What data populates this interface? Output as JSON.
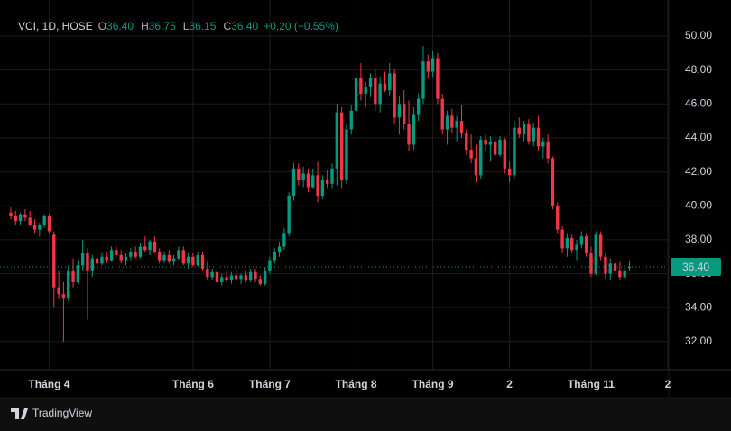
{
  "chart_data": {
    "type": "candlestick",
    "title": "VCI, 1D, HOSE",
    "legend_values": [
      {
        "label": "O",
        "value": "36.40"
      },
      {
        "label": "H",
        "value": "36.75"
      },
      {
        "label": "L",
        "value": "36.15"
      },
      {
        "label": "C",
        "value": "36.40"
      }
    ],
    "change": "+0.20 (+0.55%)",
    "up_color": "#089981",
    "down_color": "#f23645",
    "grid": true,
    "last_price": {
      "value": 36.4,
      "label": "36.40"
    },
    "ylim": [
      30.35,
      52.12
    ],
    "yticks": [
      {
        "value": 32,
        "label": "32.00"
      },
      {
        "value": 34,
        "label": "34.00"
      },
      {
        "value": 36,
        "label": "36.00"
      },
      {
        "value": 38,
        "label": "38.00"
      },
      {
        "value": 40,
        "label": "40.00"
      },
      {
        "value": 42,
        "label": "42.00"
      },
      {
        "value": 44,
        "label": "44.00"
      },
      {
        "value": 46,
        "label": "46.00"
      },
      {
        "value": 48,
        "label": "48.00"
      },
      {
        "value": 50,
        "label": "50.00"
      }
    ],
    "xlim": [
      -2.25,
      137
    ],
    "xticks": [
      {
        "value": 8,
        "label": "Tháng 4"
      },
      {
        "value": 38,
        "label": "Tháng 6"
      },
      {
        "value": 54,
        "label": "Tháng 7"
      },
      {
        "value": 72,
        "label": "Tháng 8"
      },
      {
        "value": 88,
        "label": "Tháng 9"
      },
      {
        "value": 104,
        "label": "2"
      },
      {
        "value": 121,
        "label": "Tháng 11"
      },
      {
        "value": 137,
        "label": "2"
      }
    ],
    "ohlc": [
      [
        39.6,
        39.9,
        39.2,
        39.4
      ],
      [
        39.4,
        39.7,
        38.9,
        39.1
      ],
      [
        39.1,
        39.6,
        38.9,
        39.5
      ],
      [
        39.5,
        39.8,
        39.1,
        39.3
      ],
      [
        39.3,
        39.7,
        38.8,
        38.9
      ],
      [
        38.9,
        39.2,
        38.4,
        38.6
      ],
      [
        38.6,
        39.0,
        38.2,
        38.9
      ],
      [
        38.9,
        39.5,
        38.7,
        39.4
      ],
      [
        39.4,
        39.5,
        38.4,
        38.5
      ],
      [
        38.3,
        38.5,
        34.0,
        35.2
      ],
      [
        35.2,
        36.2,
        34.5,
        34.8
      ],
      [
        34.8,
        35.5,
        32.0,
        34.6
      ],
      [
        34.6,
        36.5,
        34.4,
        36.2
      ],
      [
        36.2,
        36.9,
        35.2,
        35.5
      ],
      [
        35.5,
        36.8,
        35.4,
        36.5
      ],
      [
        36.5,
        38.0,
        36.2,
        37.2
      ],
      [
        37.2,
        37.5,
        33.3,
        36.2
      ],
      [
        36.2,
        37.1,
        35.8,
        36.9
      ],
      [
        36.9,
        37.3,
        36.4,
        36.6
      ],
      [
        36.6,
        37.2,
        36.5,
        37.0
      ],
      [
        37.0,
        37.3,
        36.6,
        36.8
      ],
      [
        36.8,
        37.6,
        36.7,
        37.4
      ],
      [
        37.4,
        37.6,
        36.9,
        37.1
      ],
      [
        37.1,
        37.4,
        36.6,
        36.8
      ],
      [
        36.8,
        37.2,
        36.5,
        37.0
      ],
      [
        37.0,
        37.5,
        36.8,
        37.3
      ],
      [
        37.3,
        37.6,
        36.9,
        37.0
      ],
      [
        37.0,
        37.8,
        36.9,
        37.6
      ],
      [
        37.6,
        38.2,
        37.3,
        37.4
      ],
      [
        37.4,
        38.0,
        37.1,
        37.9
      ],
      [
        37.9,
        38.2,
        37.2,
        37.3
      ],
      [
        37.3,
        37.5,
        36.6,
        36.8
      ],
      [
        36.8,
        37.3,
        36.6,
        37.1
      ],
      [
        37.1,
        37.4,
        36.6,
        36.7
      ],
      [
        36.7,
        37.1,
        36.5,
        36.9
      ],
      [
        36.9,
        37.6,
        36.8,
        37.4
      ],
      [
        37.4,
        37.6,
        36.5,
        36.6
      ],
      [
        36.6,
        37.2,
        36.3,
        37.0
      ],
      [
        37.0,
        37.2,
        36.4,
        36.5
      ],
      [
        36.5,
        37.3,
        36.4,
        37.1
      ],
      [
        37.1,
        37.3,
        36.2,
        36.3
      ],
      [
        36.3,
        36.7,
        35.6,
        35.8
      ],
      [
        35.8,
        36.3,
        35.6,
        36.1
      ],
      [
        36.1,
        36.4,
        35.4,
        35.5
      ],
      [
        35.5,
        36.0,
        35.3,
        35.8
      ],
      [
        35.8,
        36.2,
        35.5,
        35.6
      ],
      [
        35.6,
        36.1,
        35.4,
        35.9
      ],
      [
        35.9,
        36.3,
        35.6,
        35.7
      ],
      [
        35.7,
        36.0,
        35.4,
        35.9
      ],
      [
        35.9,
        36.2,
        35.5,
        35.6
      ],
      [
        35.6,
        36.3,
        35.5,
        36.1
      ],
      [
        36.1,
        36.3,
        35.5,
        35.7
      ],
      [
        35.7,
        35.9,
        35.3,
        35.4
      ],
      [
        35.4,
        36.4,
        35.3,
        36.2
      ],
      [
        36.2,
        37.0,
        36.0,
        36.8
      ],
      [
        36.8,
        37.5,
        36.6,
        37.3
      ],
      [
        37.3,
        37.9,
        37.0,
        37.6
      ],
      [
        37.6,
        38.7,
        37.4,
        38.4
      ],
      [
        38.4,
        40.8,
        38.2,
        40.6
      ],
      [
        40.6,
        42.5,
        40.3,
        42.2
      ],
      [
        42.2,
        42.5,
        41.2,
        41.5
      ],
      [
        41.5,
        42.3,
        41.1,
        41.9
      ],
      [
        41.9,
        42.2,
        40.8,
        41.1
      ],
      [
        41.1,
        42.2,
        41.0,
        41.8
      ],
      [
        41.8,
        42.6,
        40.2,
        40.6
      ],
      [
        40.6,
        41.8,
        40.4,
        41.5
      ],
      [
        41.5,
        42.1,
        41.0,
        41.3
      ],
      [
        41.3,
        42.5,
        41.0,
        42.2
      ],
      [
        42.2,
        46.0,
        41.2,
        45.5
      ],
      [
        45.5,
        45.8,
        41.0,
        41.5
      ],
      [
        41.5,
        44.8,
        41.3,
        44.5
      ],
      [
        44.5,
        45.9,
        44.2,
        45.6
      ],
      [
        45.6,
        48.0,
        45.2,
        47.5
      ],
      [
        47.5,
        48.4,
        46.2,
        46.6
      ],
      [
        46.6,
        47.3,
        45.8,
        47.0
      ],
      [
        47.0,
        47.8,
        46.4,
        47.5
      ],
      [
        47.5,
        48.0,
        45.6,
        46.0
      ],
      [
        46.0,
        47.6,
        45.5,
        47.2
      ],
      [
        47.2,
        47.9,
        46.7,
        46.8
      ],
      [
        46.8,
        48.4,
        46.5,
        47.8
      ],
      [
        47.8,
        48.1,
        44.8,
        45.2
      ],
      [
        45.2,
        46.5,
        44.2,
        46.0
      ],
      [
        46.0,
        46.8,
        44.5,
        44.8
      ],
      [
        44.8,
        46.2,
        43.2,
        43.6
      ],
      [
        43.6,
        45.8,
        43.3,
        45.4
      ],
      [
        45.4,
        46.6,
        45.0,
        46.3
      ],
      [
        46.3,
        49.4,
        46.0,
        48.5
      ],
      [
        48.5,
        48.9,
        47.5,
        47.9
      ],
      [
        47.9,
        49.1,
        47.6,
        48.7
      ],
      [
        48.7,
        49.0,
        46.0,
        46.3
      ],
      [
        46.3,
        46.6,
        44.2,
        44.5
      ],
      [
        44.5,
        45.6,
        43.6,
        45.3
      ],
      [
        45.3,
        45.7,
        44.3,
        44.6
      ],
      [
        44.6,
        45.3,
        43.8,
        45.0
      ],
      [
        45.0,
        45.9,
        44.0,
        44.3
      ],
      [
        44.3,
        44.5,
        43.0,
        43.3
      ],
      [
        43.3,
        44.2,
        42.5,
        42.8
      ],
      [
        42.8,
        43.6,
        41.4,
        41.8
      ],
      [
        41.8,
        44.1,
        41.6,
        43.9
      ],
      [
        43.9,
        44.2,
        43.2,
        43.6
      ],
      [
        43.6,
        44.1,
        42.6,
        43.8
      ],
      [
        43.8,
        44.0,
        42.8,
        43.0
      ],
      [
        43.0,
        44.1,
        42.9,
        43.9
      ],
      [
        43.9,
        44.0,
        41.9,
        42.2
      ],
      [
        42.2,
        42.6,
        41.4,
        41.8
      ],
      [
        41.8,
        45.0,
        41.6,
        44.6
      ],
      [
        44.6,
        45.2,
        44.0,
        44.2
      ],
      [
        44.2,
        45.0,
        43.8,
        44.8
      ],
      [
        44.8,
        45.1,
        43.6,
        43.8
      ],
      [
        43.8,
        44.9,
        43.5,
        44.6
      ],
      [
        44.6,
        45.3,
        43.2,
        43.5
      ],
      [
        43.5,
        44.0,
        42.8,
        43.8
      ],
      [
        43.8,
        44.2,
        42.5,
        42.8
      ],
      [
        42.8,
        42.9,
        39.8,
        40.0
      ],
      [
        40.0,
        40.2,
        38.4,
        38.6
      ],
      [
        38.6,
        38.8,
        37.2,
        37.5
      ],
      [
        37.5,
        38.4,
        37.0,
        38.1
      ],
      [
        38.1,
        38.3,
        37.2,
        37.4
      ],
      [
        37.4,
        38.0,
        36.8,
        37.7
      ],
      [
        37.7,
        38.5,
        37.5,
        38.2
      ],
      [
        38.2,
        38.4,
        37.0,
        37.2
      ],
      [
        37.2,
        37.6,
        35.8,
        36.0
      ],
      [
        36.0,
        38.5,
        35.9,
        38.3
      ],
      [
        38.3,
        38.5,
        36.8,
        37.0
      ],
      [
        37.0,
        37.2,
        35.7,
        36.0
      ],
      [
        36.0,
        36.9,
        35.6,
        36.6
      ],
      [
        36.6,
        36.9,
        35.9,
        36.2
      ],
      [
        36.2,
        36.7,
        35.6,
        35.8
      ],
      [
        35.8,
        36.5,
        35.7,
        36.2
      ],
      [
        36.4,
        36.75,
        36.15,
        36.4
      ]
    ]
  },
  "footer": {
    "brand": "TradingView"
  }
}
